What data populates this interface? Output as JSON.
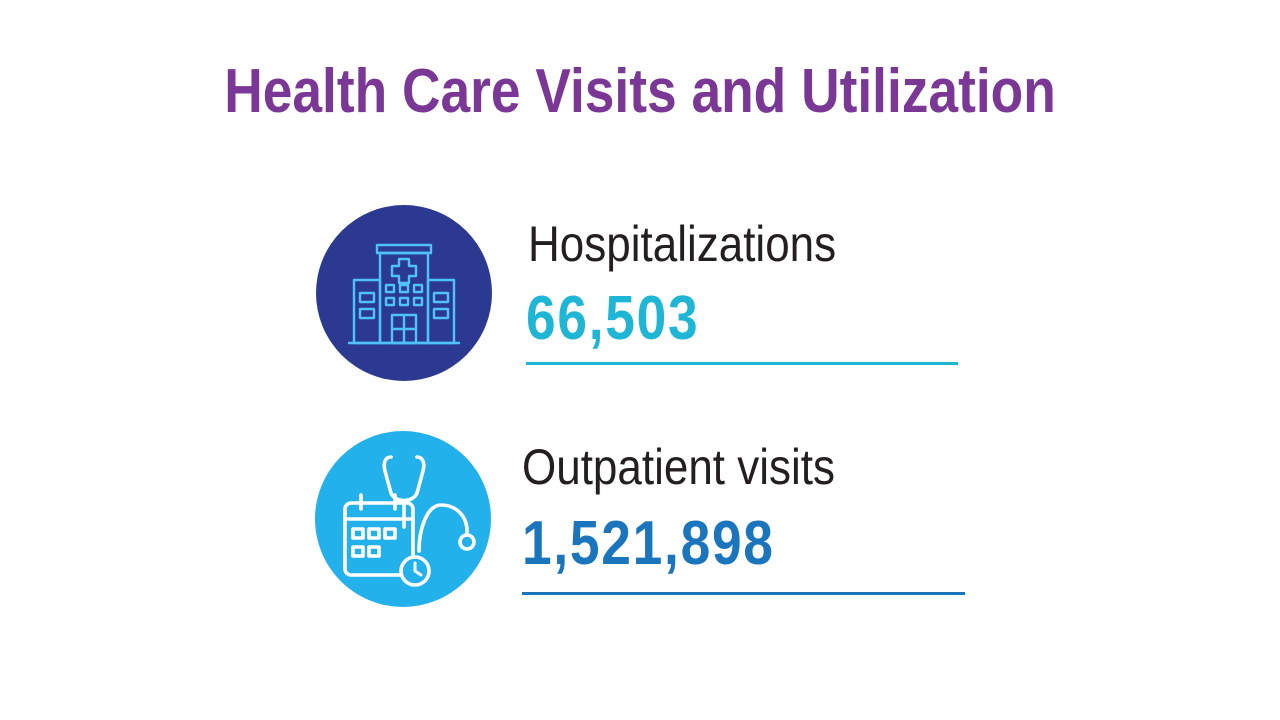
{
  "title": "Health Care Visits and Utilization",
  "colors": {
    "title": "#7b3796",
    "hospital_circle": "#2b3990",
    "hospital_icon_stroke": "#4fc3f7",
    "hospital_value": "#1fb6d6",
    "outpatient_circle": "#22b1ea",
    "outpatient_icon_stroke": "#ffffff",
    "outpatient_value": "#1b75bc",
    "label_text": "#231f20"
  },
  "stats": [
    {
      "label": "Hospitalizations",
      "value": "66,503",
      "icon": "hospital-building-icon"
    },
    {
      "label": "Outpatient visits",
      "value": "1,521,898",
      "icon": "calendar-stethoscope-icon"
    }
  ]
}
